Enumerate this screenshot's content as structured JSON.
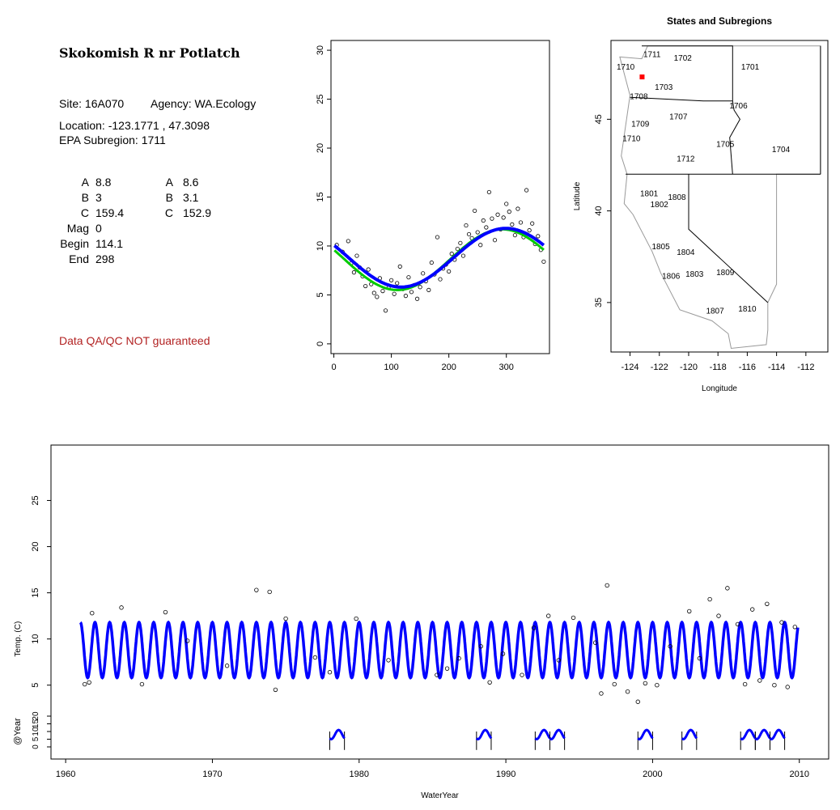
{
  "site": {
    "title": "Skokomish R nr Potlatch",
    "site_line": "Site: 16A070",
    "agency_line": "Agency: WA.Ecology",
    "location_line": "Location: -123.1771 , 47.3098",
    "subregion_line": "EPA Subregion: 1711",
    "params_left": [
      {
        "label": "A",
        "value": "8.8"
      },
      {
        "label": "B",
        "value": "3"
      },
      {
        "label": "C",
        "value": "159.4"
      },
      {
        "label": "Mag",
        "value": "0"
      },
      {
        "label": "Begin",
        "value": "114.1"
      },
      {
        "label": "End",
        "value": "298"
      }
    ],
    "params_right": [
      {
        "label": "A",
        "value": "8.6"
      },
      {
        "label": "B",
        "value": "3.1"
      },
      {
        "label": "C",
        "value": "152.9"
      }
    ],
    "qa_note": "Data QA/QC NOT guaranteed"
  },
  "colors": {
    "fit": "#0000ff",
    "alt_fit": "#00cc00",
    "points": "#000000",
    "site_marker": "#ff0000",
    "qa": "#b22222"
  },
  "chart_data": [
    {
      "type": "scatter",
      "title": "",
      "xlabel": "",
      "ylabel": "",
      "xlim": [
        -5,
        375
      ],
      "ylim": [
        -1,
        31
      ],
      "x_ticks": [
        0,
        100,
        200,
        300
      ],
      "y_ticks": [
        0,
        5,
        10,
        15,
        20,
        25,
        30
      ],
      "fit_mean": 8.8,
      "fit_amp": 3,
      "fit_phase": 159.4,
      "alt_mean": 8.6,
      "alt_amp": 3.1,
      "alt_phase": 152.9,
      "series": [
        {
          "values": [
            [
              5,
              10.1
            ],
            [
              15,
              9.4
            ],
            [
              25,
              10.5
            ],
            [
              30,
              8.2
            ],
            [
              35,
              7.3
            ],
            [
              40,
              9.0
            ],
            [
              45,
              7.8
            ],
            [
              50,
              6.9
            ],
            [
              55,
              5.9
            ],
            [
              60,
              7.6
            ],
            [
              65,
              6.1
            ],
            [
              70,
              5.2
            ],
            [
              75,
              4.8
            ],
            [
              80,
              6.7
            ],
            [
              85,
              5.4
            ],
            [
              90,
              3.4
            ],
            [
              95,
              5.7
            ],
            [
              100,
              6.5
            ],
            [
              105,
              5.1
            ],
            [
              110,
              6.2
            ],
            [
              115,
              7.9
            ],
            [
              120,
              5.6
            ],
            [
              125,
              4.9
            ],
            [
              130,
              6.8
            ],
            [
              135,
              5.3
            ],
            [
              140,
              6.0
            ],
            [
              145,
              4.6
            ],
            [
              150,
              5.8
            ],
            [
              155,
              7.2
            ],
            [
              160,
              6.4
            ],
            [
              165,
              5.5
            ],
            [
              170,
              8.3
            ],
            [
              175,
              7.1
            ],
            [
              180,
              10.9
            ],
            [
              185,
              6.6
            ],
            [
              190,
              7.7
            ],
            [
              195,
              8.1
            ],
            [
              200,
              7.4
            ],
            [
              205,
              9.2
            ],
            [
              210,
              8.6
            ],
            [
              215,
              9.7
            ],
            [
              220,
              10.3
            ],
            [
              225,
              9.0
            ],
            [
              230,
              12.1
            ],
            [
              235,
              11.2
            ],
            [
              240,
              10.8
            ],
            [
              245,
              13.6
            ],
            [
              250,
              11.4
            ],
            [
              255,
              10.1
            ],
            [
              260,
              12.6
            ],
            [
              265,
              11.9
            ],
            [
              270,
              15.5
            ],
            [
              275,
              12.8
            ],
            [
              280,
              10.6
            ],
            [
              285,
              13.2
            ],
            [
              290,
              11.7
            ],
            [
              295,
              12.9
            ],
            [
              300,
              14.3
            ],
            [
              305,
              13.5
            ],
            [
              310,
              12.2
            ],
            [
              315,
              11.1
            ],
            [
              320,
              13.8
            ],
            [
              325,
              12.4
            ],
            [
              330,
              10.9
            ],
            [
              335,
              15.7
            ],
            [
              340,
              11.6
            ],
            [
              345,
              12.3
            ],
            [
              350,
              10.2
            ],
            [
              355,
              11.0
            ],
            [
              360,
              9.6
            ],
            [
              365,
              8.4
            ]
          ]
        }
      ]
    },
    {
      "type": "map",
      "title": "States and Subregions",
      "xlabel": "Longitude",
      "ylabel": "Latitude",
      "xlim": [
        -125.3,
        -110.5
      ],
      "ylim": [
        32.3,
        49.3
      ],
      "x_ticks": [
        -124,
        -122,
        -120,
        -118,
        -116,
        -114,
        -112
      ],
      "y_ticks": [
        35,
        40,
        45
      ],
      "regions": [
        {
          "name": "1702",
          "lon": -120.4,
          "lat": 48.2
        },
        {
          "name": "1701",
          "lon": -115.8,
          "lat": 47.7
        },
        {
          "name": "1711",
          "lon": -122.5,
          "lat": 48.4
        },
        {
          "name": "1710",
          "lon": -124.3,
          "lat": 47.7
        },
        {
          "name": "1703",
          "lon": -121.7,
          "lat": 46.6
        },
        {
          "name": "1708",
          "lon": -123.4,
          "lat": 46.1
        },
        {
          "name": "1706",
          "lon": -116.6,
          "lat": 45.6
        },
        {
          "name": "1707",
          "lon": -120.7,
          "lat": 45.0
        },
        {
          "name": "1709",
          "lon": -123.3,
          "lat": 44.6
        },
        {
          "name": "1710",
          "lon": -123.9,
          "lat": 43.8
        },
        {
          "name": "1705",
          "lon": -117.5,
          "lat": 43.5
        },
        {
          "name": "1704",
          "lon": -113.7,
          "lat": 43.2
        },
        {
          "name": "1712",
          "lon": -120.2,
          "lat": 42.7
        },
        {
          "name": "1801",
          "lon": -122.7,
          "lat": 40.8
        },
        {
          "name": "1808",
          "lon": -120.8,
          "lat": 40.6
        },
        {
          "name": "1802",
          "lon": -122.0,
          "lat": 40.2
        },
        {
          "name": "1805",
          "lon": -121.9,
          "lat": 37.9
        },
        {
          "name": "1804",
          "lon": -120.2,
          "lat": 37.6
        },
        {
          "name": "1806",
          "lon": -121.2,
          "lat": 36.3
        },
        {
          "name": "1803",
          "lon": -119.6,
          "lat": 36.4
        },
        {
          "name": "1809",
          "lon": -117.5,
          "lat": 36.5
        },
        {
          "name": "1807",
          "lon": -118.2,
          "lat": 34.4
        },
        {
          "name": "1810",
          "lon": -116.0,
          "lat": 34.5
        }
      ],
      "site": {
        "lon": -123.1771,
        "lat": 47.3098
      }
    },
    {
      "type": "line",
      "title": "",
      "xlabel": "WaterYear",
      "ylabel": "Temp. (C)",
      "ylabel2": "@Year",
      "xlim": [
        1959,
        2012
      ],
      "ylim": [
        -3,
        31
      ],
      "x_ticks": [
        1960,
        1970,
        1980,
        1990,
        2000,
        2010
      ],
      "y_ticks": [
        5,
        10,
        15,
        20,
        25
      ],
      "y_ticks2": [
        0,
        5,
        10,
        15,
        20
      ],
      "fit_mean": 8.8,
      "fit_amp": 3,
      "fit_phase": 159.4,
      "series_range": [
        1961.0,
        2009.9
      ],
      "year_segments": [
        1978,
        1988,
        1992,
        1993,
        1999,
        2002,
        2006,
        2007,
        2008
      ],
      "series": [
        {
          "name": "observed",
          "values": [
            [
              1961.3,
              5.1
            ],
            [
              1961.6,
              5.3
            ],
            [
              1961.8,
              12.8
            ],
            [
              1963.8,
              13.4
            ],
            [
              1965.2,
              5.1
            ],
            [
              1966.8,
              12.9
            ],
            [
              1968.3,
              9.8
            ],
            [
              1971.0,
              7.1
            ],
            [
              1973.0,
              15.3
            ],
            [
              1973.9,
              15.1
            ],
            [
              1974.3,
              4.5
            ],
            [
              1975.0,
              12.2
            ],
            [
              1977.0,
              8.0
            ],
            [
              1978.0,
              6.4
            ],
            [
              1979.8,
              12.2
            ],
            [
              1982.0,
              7.7
            ],
            [
              1985.3,
              6.1
            ],
            [
              1986.0,
              6.8
            ],
            [
              1986.8,
              7.9
            ],
            [
              1988.3,
              9.2
            ],
            [
              1988.9,
              5.3
            ],
            [
              1989.8,
              8.4
            ],
            [
              1991.1,
              6.1
            ],
            [
              1991.9,
              11.2
            ],
            [
              1992.9,
              12.5
            ],
            [
              1993.6,
              7.7
            ],
            [
              1994.6,
              12.3
            ],
            [
              1996.1,
              9.6
            ],
            [
              1996.5,
              4.1
            ],
            [
              1996.9,
              15.8
            ],
            [
              1997.4,
              5.1
            ],
            [
              1998.3,
              4.3
            ],
            [
              1999.0,
              3.2
            ],
            [
              1999.5,
              5.2
            ],
            [
              2000.3,
              5.0
            ],
            [
              2001.2,
              9.2
            ],
            [
              2002.5,
              13.0
            ],
            [
              2003.2,
              7.9
            ],
            [
              2003.9,
              14.3
            ],
            [
              2004.5,
              12.5
            ],
            [
              2005.1,
              15.5
            ],
            [
              2005.8,
              11.6
            ],
            [
              2006.3,
              5.1
            ],
            [
              2006.8,
              13.2
            ],
            [
              2007.3,
              5.5
            ],
            [
              2007.8,
              13.8
            ],
            [
              2008.3,
              5.0
            ],
            [
              2008.8,
              11.8
            ],
            [
              2009.2,
              4.8
            ],
            [
              2009.7,
              11.3
            ]
          ]
        }
      ]
    }
  ]
}
